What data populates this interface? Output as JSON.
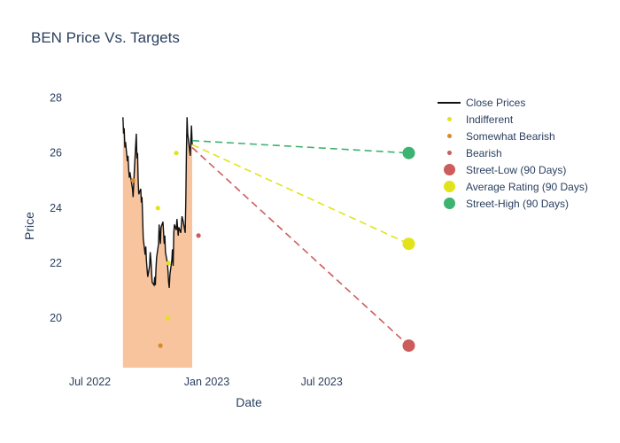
{
  "title": "BEN Price Vs. Targets",
  "colors": {
    "text": "#2a3f5f",
    "background": "#ffffff"
  },
  "chart_data": {
    "type": "line",
    "title": "BEN Price Vs. Targets",
    "xlabel": "Date",
    "ylabel": "Price",
    "grid": false,
    "legend_position": "right",
    "text_color": "#2a3f5f",
    "x_range": [
      "2022-06-01",
      "2023-12-15"
    ],
    "y_range": [
      18.2,
      28.5
    ],
    "x_ticks": [
      {
        "label": "Jul 2022",
        "date": "2022-07-01"
      },
      {
        "label": "Jan 2023",
        "date": "2023-01-01"
      },
      {
        "label": "Jul 2023",
        "date": "2023-07-01"
      }
    ],
    "y_ticks": [
      20,
      22,
      24,
      26,
      28
    ],
    "close_prices": {
      "name": "Close Prices",
      "color": "#111111",
      "fill_color": "#f8c49e",
      "points": [
        [
          "2022-08-22",
          27.3
        ],
        [
          "2022-08-23",
          26.7
        ],
        [
          "2022-08-24",
          26.9
        ],
        [
          "2022-08-25",
          26.2
        ],
        [
          "2022-08-26",
          26.4
        ],
        [
          "2022-08-29",
          25.7
        ],
        [
          "2022-08-30",
          25.9
        ],
        [
          "2022-08-31",
          25.4
        ],
        [
          "2022-09-01",
          25.1
        ],
        [
          "2022-09-02",
          25.3
        ],
        [
          "2022-09-06",
          24.7
        ],
        [
          "2022-09-07",
          24.4
        ],
        [
          "2022-09-08",
          24.9
        ],
        [
          "2022-09-09",
          25.4
        ],
        [
          "2022-09-12",
          26.7
        ],
        [
          "2022-09-13",
          25.8
        ],
        [
          "2022-09-14",
          26.0
        ],
        [
          "2022-09-15",
          25.0
        ],
        [
          "2022-09-16",
          24.5
        ],
        [
          "2022-09-19",
          24.7
        ],
        [
          "2022-09-20",
          24.2
        ],
        [
          "2022-09-21",
          24.4
        ],
        [
          "2022-09-22",
          23.7
        ],
        [
          "2022-09-23",
          22.9
        ],
        [
          "2022-09-26",
          22.3
        ],
        [
          "2022-09-27",
          22.6
        ],
        [
          "2022-09-28",
          22.1
        ],
        [
          "2022-09-29",
          21.8
        ],
        [
          "2022-09-30",
          21.5
        ],
        [
          "2022-10-03",
          21.9
        ],
        [
          "2022-10-04",
          22.4
        ],
        [
          "2022-10-05",
          22.1
        ],
        [
          "2022-10-06",
          21.7
        ],
        [
          "2022-10-07",
          21.3
        ],
        [
          "2022-10-10",
          21.2
        ],
        [
          "2022-10-11",
          21.5
        ],
        [
          "2022-10-12",
          21.2
        ],
        [
          "2022-10-13",
          21.8
        ],
        [
          "2022-10-14",
          22.2
        ],
        [
          "2022-10-17",
          22.7
        ],
        [
          "2022-10-18",
          23.4
        ],
        [
          "2022-10-19",
          23.0
        ],
        [
          "2022-10-20",
          22.7
        ],
        [
          "2022-10-21",
          23.3
        ],
        [
          "2022-10-24",
          23.5
        ],
        [
          "2022-10-25",
          23.1
        ],
        [
          "2022-10-26",
          22.7
        ],
        [
          "2022-10-27",
          23.0
        ],
        [
          "2022-10-28",
          22.4
        ],
        [
          "2022-10-31",
          22.0
        ],
        [
          "2022-11-01",
          21.7
        ],
        [
          "2022-11-02",
          21.3
        ],
        [
          "2022-11-03",
          21.1
        ],
        [
          "2022-11-04",
          21.6
        ],
        [
          "2022-11-07",
          22.1
        ],
        [
          "2022-11-08",
          22.5
        ],
        [
          "2022-11-09",
          21.9
        ],
        [
          "2022-11-10",
          23.1
        ],
        [
          "2022-11-11",
          23.4
        ],
        [
          "2022-11-14",
          23.2
        ],
        [
          "2022-11-15",
          23.6
        ],
        [
          "2022-11-16",
          23.3
        ],
        [
          "2022-11-17",
          23.0
        ],
        [
          "2022-11-18",
          23.3
        ],
        [
          "2022-11-21",
          23.1
        ],
        [
          "2022-11-22",
          23.4
        ],
        [
          "2022-11-23",
          23.7
        ],
        [
          "2022-11-25",
          23.5
        ],
        [
          "2022-11-28",
          23.1
        ],
        [
          "2022-11-29",
          24.3
        ],
        [
          "2022-11-30",
          26.1
        ],
        [
          "2022-12-01",
          27.3
        ],
        [
          "2022-12-02",
          26.7
        ],
        [
          "2022-12-05",
          26.1
        ],
        [
          "2022-12-06",
          25.9
        ],
        [
          "2022-12-07",
          26.5
        ],
        [
          "2022-12-08",
          27.0
        ],
        [
          "2022-12-09",
          26.3
        ]
      ]
    },
    "ratings": [
      {
        "name": "Indifferent",
        "color": "#e3e31b",
        "points": [
          [
            "2022-10-16",
            24.0
          ],
          [
            "2022-11-01",
            20.0
          ],
          [
            "2022-11-02",
            22.0
          ],
          [
            "2022-11-14",
            26.0
          ]
        ]
      },
      {
        "name": "Somewhat Bearish",
        "color": "#d98b27",
        "points": [
          [
            "2022-09-07",
            25.0
          ],
          [
            "2022-10-20",
            19.0
          ]
        ]
      },
      {
        "name": "Bearish",
        "color": "#cd5c5c",
        "points": [
          [
            "2022-12-19",
            23.0
          ]
        ]
      }
    ],
    "forecasts": [
      {
        "name": "Street-Low (90 Days)",
        "color": "#cd5c5c",
        "start": [
          "2022-12-09",
          26.2
        ],
        "end": [
          "2023-11-15",
          19.0
        ]
      },
      {
        "name": "Average Rating (90 Days)",
        "color": "#e3e31b",
        "start": [
          "2022-12-09",
          26.3
        ],
        "end": [
          "2023-11-15",
          22.7
        ]
      },
      {
        "name": "Street-High (90 Days)",
        "color": "#3cb371",
        "start": [
          "2022-12-09",
          26.45
        ],
        "end": [
          "2023-11-15",
          26.0
        ]
      }
    ],
    "legend": [
      {
        "label": "Close Prices",
        "symbol": "line",
        "color": "#111111"
      },
      {
        "label": "Indifferent",
        "symbol": "dot-small",
        "color": "#e3e31b"
      },
      {
        "label": "Somewhat Bearish",
        "symbol": "dot-small",
        "color": "#d98b27"
      },
      {
        "label": "Bearish",
        "symbol": "dot-small",
        "color": "#cd5c5c"
      },
      {
        "label": "Street-Low (90 Days)",
        "symbol": "dot-large",
        "color": "#cd5c5c"
      },
      {
        "label": "Average Rating (90 Days)",
        "symbol": "dot-large",
        "color": "#e3e31b"
      },
      {
        "label": "Street-High (90 Days)",
        "symbol": "dot-large",
        "color": "#3cb371"
      }
    ]
  }
}
